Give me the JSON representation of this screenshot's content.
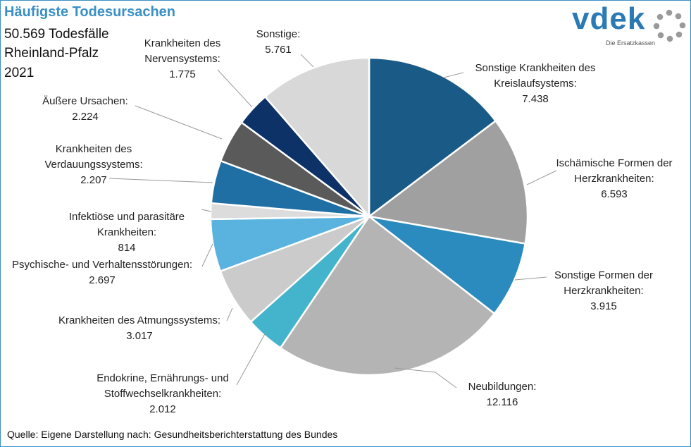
{
  "header": {
    "title": "Häufigste Todesursachen",
    "line1": "50.569 Todesfälle",
    "line2": "Rheinland-Pfalz",
    "line3": "2021"
  },
  "logo": {
    "text": "vdek",
    "tagline": "Die Ersatzkassen"
  },
  "source": "Quelle: Eigene Darstellung nach: Gesundheitsberichterstattung  des Bundes",
  "chart_data": {
    "type": "pie",
    "title": "Häufigste Todesursachen",
    "total": 50569,
    "slices": [
      {
        "name": "Sonstige Krankheiten des Kreislaufsystems",
        "label_lines": [
          "Sonstige Krankheiten des",
          "Kreislaufsystems:"
        ],
        "value": 7438,
        "value_label": "7.438",
        "color": "#1a5a87"
      },
      {
        "name": "Ischämische Formen der Herzkrankheiten",
        "label_lines": [
          "Ischämische Formen der",
          "Herzkrankheiten:"
        ],
        "value": 6593,
        "value_label": "6.593",
        "color": "#a0a0a0"
      },
      {
        "name": "Sonstige Formen der Herzkrankheiten",
        "label_lines": [
          "Sonstige Formen der",
          "Herzkrankheiten:"
        ],
        "value": 3915,
        "value_label": "3.915",
        "color": "#2b8bbf"
      },
      {
        "name": "Neubildungen",
        "label_lines": [
          "Neubildungen:"
        ],
        "value": 12116,
        "value_label": "12.116",
        "color": "#b4b4b4"
      },
      {
        "name": "Endokrine, Ernährungs- und Stoffwechselkrankheiten",
        "label_lines": [
          "Endokrine, Ernährungs- und",
          "Stoffwechselkrankheiten:"
        ],
        "value": 2012,
        "value_label": "2.012",
        "color": "#44b4cc"
      },
      {
        "name": "Krankheiten des Atmungssystems",
        "label_lines": [
          "Krankheiten des Atmungssystems:"
        ],
        "value": 3017,
        "value_label": "3.017",
        "color": "#cbcbcb"
      },
      {
        "name": "Psychische- und Verhaltensstörungen",
        "label_lines": [
          "Psychische- und Verhaltensstörungen:"
        ],
        "value": 2697,
        "value_label": "2.697",
        "color": "#5ab3df"
      },
      {
        "name": "Infektiöse und parasitäre Krankheiten",
        "label_lines": [
          "Infektiöse und parasitäre",
          "Krankheiten:"
        ],
        "value": 814,
        "value_label": "814",
        "color": "#dcdcdc"
      },
      {
        "name": "Krankheiten des Verdauungssystems",
        "label_lines": [
          "Krankheiten des",
          "Verdauungssystems:"
        ],
        "value": 2207,
        "value_label": "2.207",
        "color": "#1f6fa4"
      },
      {
        "name": "Äußere Ursachen",
        "label_lines": [
          "Äußere Ursachen:"
        ],
        "value": 2224,
        "value_label": "2.224",
        "color": "#5a5a5a"
      },
      {
        "name": "Krankheiten des Nervensystems",
        "label_lines": [
          "Krankheiten des",
          "Nervensystems:"
        ],
        "value": 1775,
        "value_label": "1.775",
        "color": "#0c3268"
      },
      {
        "name": "Sonstige",
        "label_lines": [
          "Sonstige:"
        ],
        "value": 5761,
        "value_label": "5.761",
        "color": "#d8d8d8"
      }
    ]
  }
}
